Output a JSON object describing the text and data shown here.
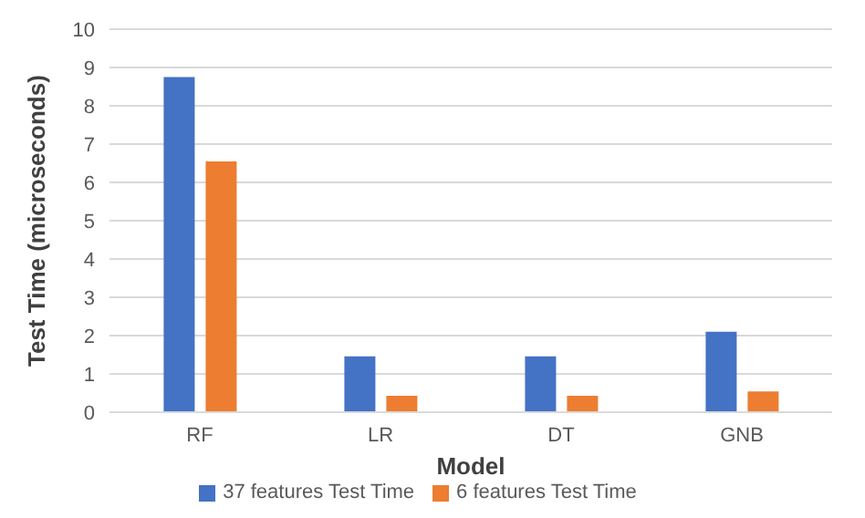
{
  "chart_data": {
    "type": "bar",
    "xlabel": "Model",
    "ylabel": "Test Time (microseconds)",
    "categories": [
      "RF",
      "LR",
      "DT",
      "GNB"
    ],
    "series": [
      {
        "name": "37 features Test Time",
        "color": "#4472c4",
        "values": [
          8.75,
          1.46,
          1.46,
          2.1
        ]
      },
      {
        "name": "6 features Test Time",
        "color": "#ed7d31",
        "values": [
          6.55,
          0.43,
          0.43,
          0.54
        ]
      }
    ],
    "ylim": [
      0,
      10
    ],
    "yticks": [
      0,
      1,
      2,
      3,
      4,
      5,
      6,
      7,
      8,
      9,
      10
    ],
    "grid": "y",
    "legend": "bottom"
  }
}
